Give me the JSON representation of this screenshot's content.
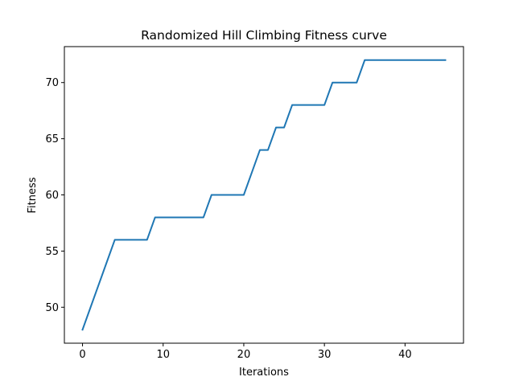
{
  "chart_data": {
    "type": "line",
    "title": "Randomized Hill Climbing Fitness curve",
    "xlabel": "Iterations",
    "ylabel": "Fitness",
    "xlim": [
      -2.25,
      47.25
    ],
    "ylim": [
      46.8,
      73.2
    ],
    "xticks": [
      0,
      10,
      20,
      30,
      40
    ],
    "yticks": [
      50,
      55,
      60,
      65,
      70
    ],
    "grid": false,
    "legend": null,
    "series": [
      {
        "color": "#1f77b4",
        "x": [
          0,
          1,
          2,
          3,
          4,
          5,
          6,
          7,
          8,
          9,
          10,
          11,
          12,
          13,
          14,
          15,
          16,
          17,
          18,
          19,
          20,
          21,
          22,
          23,
          24,
          25,
          26,
          27,
          28,
          29,
          30,
          31,
          32,
          33,
          34,
          35,
          36,
          37,
          38,
          39,
          40,
          41,
          42,
          43,
          44,
          45
        ],
        "values": [
          48,
          50,
          52,
          54,
          56,
          56,
          56,
          56,
          56,
          58,
          58,
          58,
          58,
          58,
          58,
          58,
          60,
          60,
          60,
          60,
          60,
          62,
          64,
          64,
          66,
          66,
          68,
          68,
          68,
          68,
          68,
          70,
          70,
          70,
          70,
          72,
          72,
          72,
          72,
          72,
          72,
          72,
          72,
          72,
          72,
          72
        ]
      }
    ]
  }
}
